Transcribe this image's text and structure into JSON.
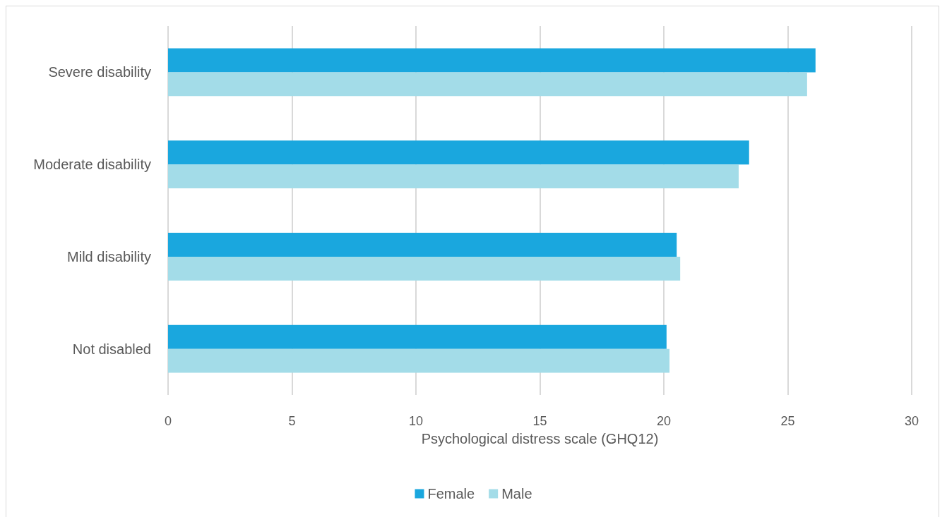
{
  "chart_data": {
    "type": "bar",
    "orientation": "horizontal",
    "xlabel": "Psychological distress scale (GHQ12)",
    "categories": [
      "Severe disability",
      "Moderate disability",
      "Mild disability",
      "Not disabled"
    ],
    "series": [
      {
        "name": "Female",
        "color": "#1aa7de",
        "values": [
          26.12,
          23.44,
          20.52,
          20.11
        ]
      },
      {
        "name": "Male",
        "color": "#a3dce8",
        "values": [
          25.78,
          23.02,
          20.66,
          20.23
        ]
      }
    ],
    "xlim": [
      0,
      30
    ],
    "xticks": [
      0,
      5,
      10,
      15,
      20,
      25,
      30
    ],
    "grid": "x",
    "legend": "bottom"
  }
}
